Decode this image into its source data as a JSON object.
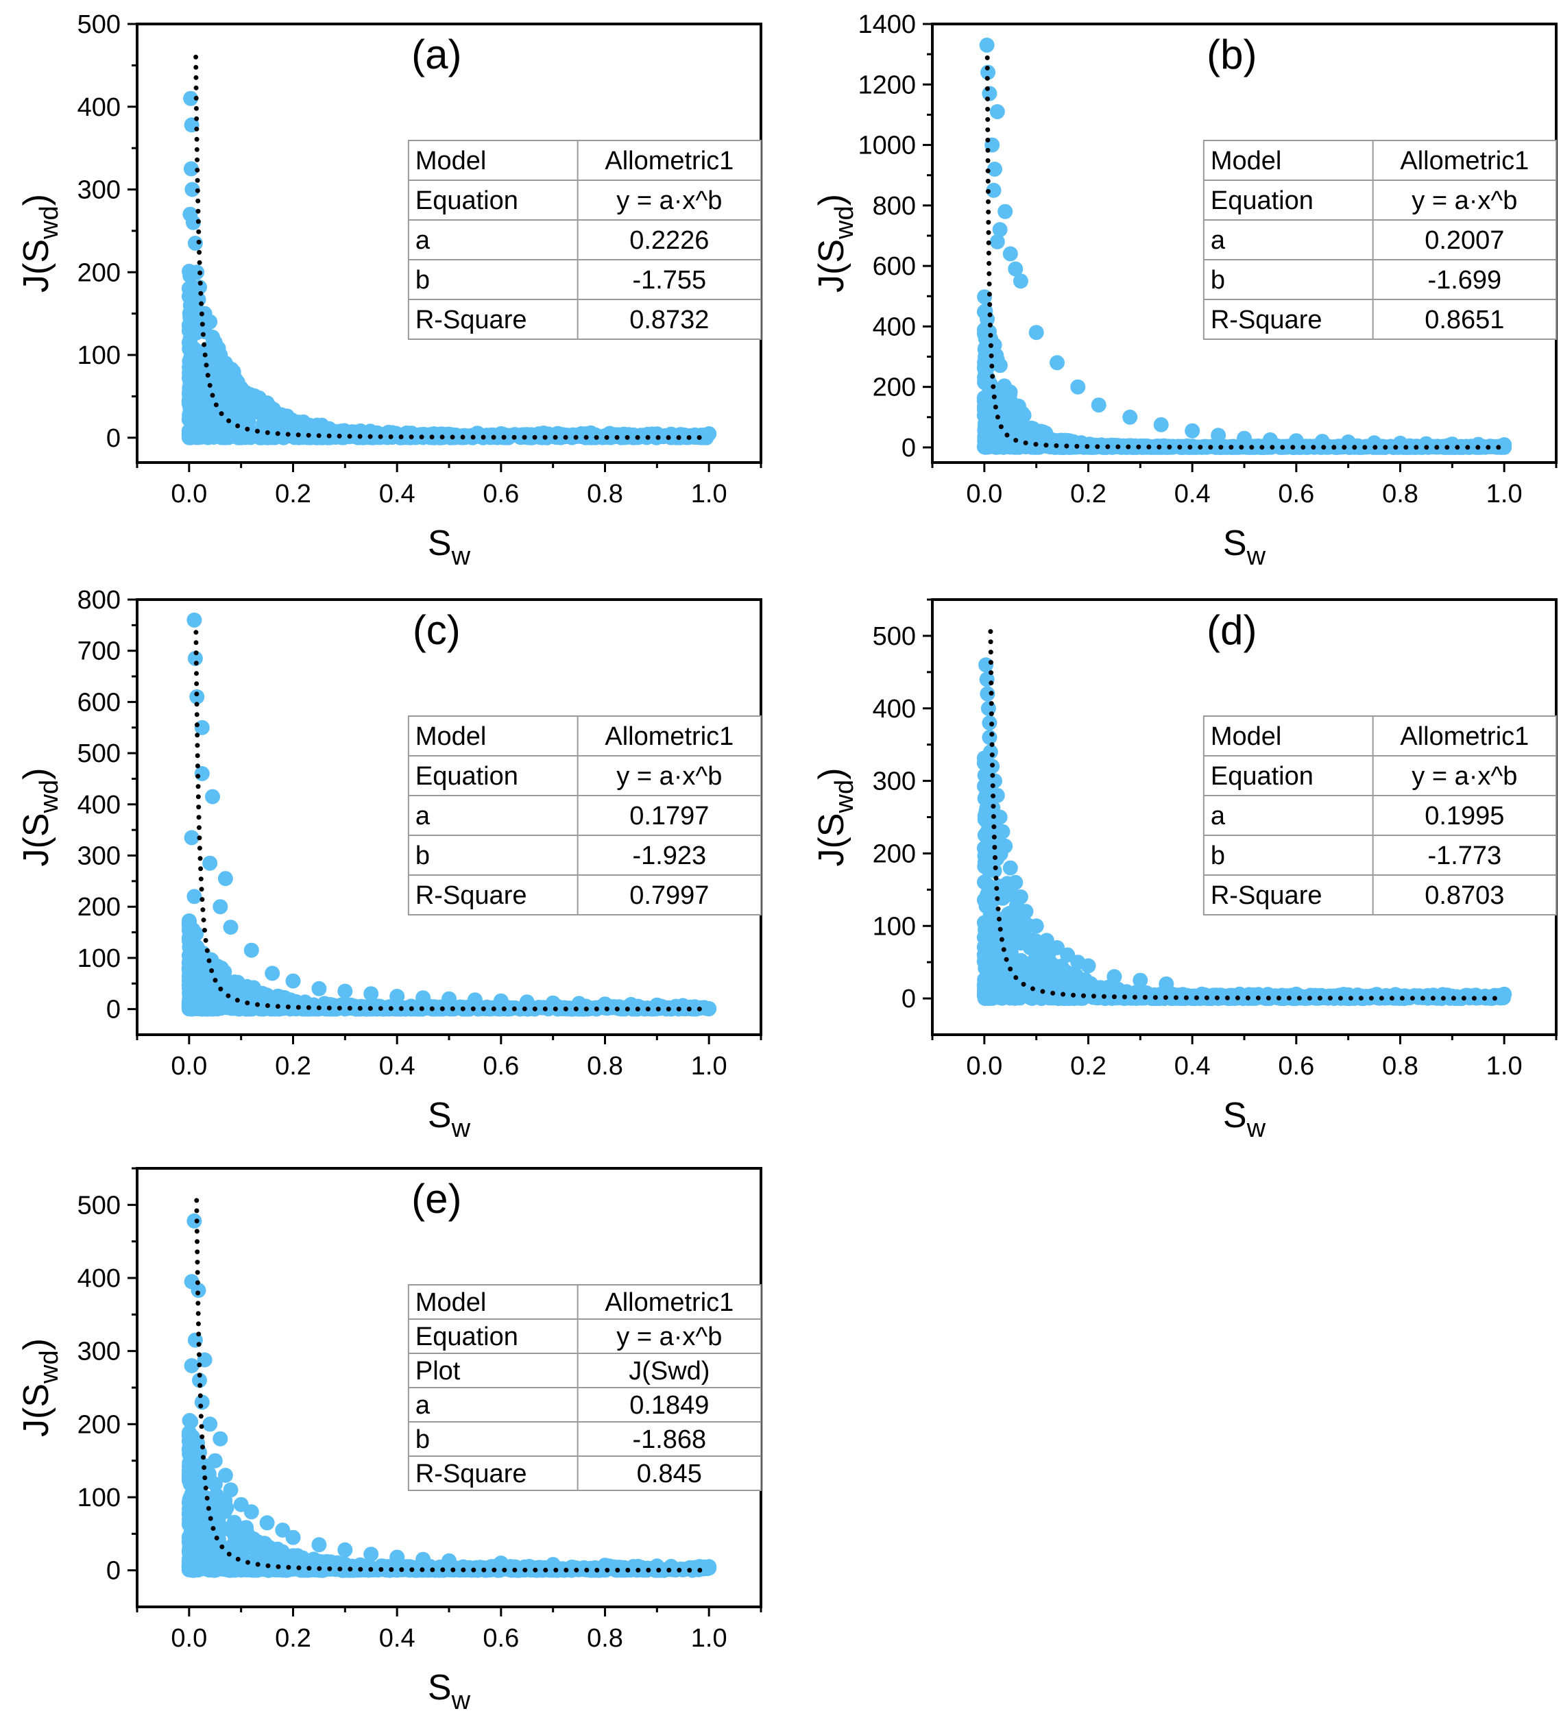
{
  "figure": {
    "fit_color": "#000000",
    "point_color": "#5BBEF5"
  },
  "chart_data": [
    {
      "type": "scatter",
      "panel": "(a)",
      "xlabel": "S",
      "xlabel_sub": "w",
      "ylabel": "J(S",
      "ylabel_sub": "wd",
      "ylabel_close": ")",
      "xlim": [
        -0.1,
        1.1
      ],
      "ylim": [
        -30,
        500
      ],
      "xticks": [
        0.0,
        0.2,
        0.4,
        0.6,
        0.8,
        1.0
      ],
      "xtick_labels": [
        "0.0",
        "0.2",
        "0.4",
        "0.6",
        "0.8",
        "1.0"
      ],
      "yticks": [
        0,
        100,
        200,
        300,
        400,
        500
      ],
      "ytick_labels": [
        "0",
        "100",
        "200",
        "300",
        "400",
        "500"
      ],
      "fit": {
        "model": "Allometric1",
        "a": 0.2226,
        "b": -1.755
      },
      "table": [
        [
          "Model",
          "Allometric1"
        ],
        [
          "Equation",
          "y = a·x^b"
        ],
        [
          "a",
          "0.2226"
        ],
        [
          "b",
          "-1.755"
        ],
        [
          "R-Square",
          "0.8732"
        ]
      ],
      "points": {
        "envelope_peak": 200,
        "envelope_decay": 11,
        "count": 700,
        "outliers": [
          [
            0.003,
            410
          ],
          [
            0.005,
            378
          ],
          [
            0.004,
            325
          ],
          [
            0.006,
            300
          ],
          [
            0.002,
            270
          ],
          [
            0.008,
            260
          ],
          [
            0.012,
            235
          ],
          [
            0.015,
            200
          ],
          [
            0.02,
            182
          ],
          [
            0.006,
            150
          ],
          [
            0.01,
            105
          ],
          [
            0.005,
            60
          ],
          [
            0.015,
            52
          ],
          [
            0.03,
            150
          ],
          [
            0.04,
            140
          ],
          [
            0.05,
            115
          ],
          [
            0.06,
            100
          ],
          [
            0.07,
            90
          ],
          [
            0.08,
            80
          ],
          [
            0.09,
            70
          ],
          [
            0.1,
            60
          ],
          [
            0.12,
            45
          ],
          [
            0.14,
            32
          ],
          [
            0.16,
            22
          ],
          [
            0.2,
            14
          ]
        ]
      }
    },
    {
      "type": "scatter",
      "panel": "(b)",
      "xlabel": "S",
      "xlabel_sub": "w",
      "ylabel": "J(S",
      "ylabel_sub": "wd",
      "ylabel_close": ")",
      "xlim": [
        -0.1,
        1.1
      ],
      "ylim": [
        -50,
        1400
      ],
      "xticks": [
        0.0,
        0.2,
        0.4,
        0.6,
        0.8,
        1.0
      ],
      "xtick_labels": [
        "0.0",
        "0.2",
        "0.4",
        "0.6",
        "0.8",
        "1.0"
      ],
      "yticks": [
        0,
        200,
        400,
        600,
        800,
        1000,
        1200,
        1400
      ],
      "ytick_labels": [
        "0",
        "200",
        "400",
        "600",
        "800",
        "1000",
        "1200",
        "1400"
      ],
      "fit": {
        "model": "Allometric1",
        "a": 0.2007,
        "b": -1.699
      },
      "table": [
        [
          "Model",
          "Allometric1"
        ],
        [
          "Equation",
          "y = a·x^b"
        ],
        [
          "a",
          "0.2007"
        ],
        [
          "b",
          "-1.699"
        ],
        [
          "R-Square",
          "0.8651"
        ]
      ],
      "points": {
        "envelope_peak": 500,
        "envelope_decay": 20,
        "count": 700,
        "outliers": [
          [
            0.005,
            1330
          ],
          [
            0.007,
            1240
          ],
          [
            0.01,
            1170
          ],
          [
            0.025,
            1110
          ],
          [
            0.015,
            1000
          ],
          [
            0.02,
            920
          ],
          [
            0.018,
            850
          ],
          [
            0.04,
            780
          ],
          [
            0.03,
            720
          ],
          [
            0.025,
            680
          ],
          [
            0.05,
            640
          ],
          [
            0.06,
            590
          ],
          [
            0.07,
            550
          ],
          [
            0.1,
            380
          ],
          [
            0.14,
            280
          ],
          [
            0.18,
            200
          ],
          [
            0.22,
            140
          ],
          [
            0.28,
            100
          ],
          [
            0.34,
            75
          ],
          [
            0.4,
            55
          ],
          [
            0.45,
            40
          ],
          [
            0.5,
            30
          ],
          [
            0.55,
            25
          ],
          [
            0.6,
            22
          ],
          [
            0.65,
            20
          ],
          [
            0.7,
            18
          ],
          [
            0.75,
            15
          ],
          [
            0.8,
            14
          ],
          [
            0.85,
            12
          ],
          [
            0.9,
            11
          ],
          [
            0.95,
            10
          ],
          [
            1.0,
            9
          ]
        ]
      }
    },
    {
      "type": "scatter",
      "panel": "(c)",
      "xlabel": "S",
      "xlabel_sub": "w",
      "ylabel": "J(S",
      "ylabel_sub": "wd",
      "ylabel_close": ")",
      "xlim": [
        -0.1,
        1.1
      ],
      "ylim": [
        -50,
        800
      ],
      "xticks": [
        0.0,
        0.2,
        0.4,
        0.6,
        0.8,
        1.0
      ],
      "xtick_labels": [
        "0.0",
        "0.2",
        "0.4",
        "0.6",
        "0.8",
        "1.0"
      ],
      "yticks": [
        0,
        100,
        200,
        300,
        400,
        500,
        600,
        700,
        800
      ],
      "ytick_labels": [
        "0",
        "100",
        "200",
        "300",
        "400",
        "500",
        "600",
        "700",
        "800"
      ],
      "fit": {
        "model": "Allometric1",
        "a": 0.1797,
        "b": -1.923
      },
      "table": [
        [
          "Model",
          "Allometric1"
        ],
        [
          "Equation",
          "y = a·x^b"
        ],
        [
          "a",
          "0.1797"
        ],
        [
          "b",
          "-1.923"
        ],
        [
          "R-Square",
          "0.7997"
        ]
      ],
      "points": {
        "envelope_peak": 170,
        "envelope_decay": 12,
        "count": 650,
        "outliers": [
          [
            0.01,
            760
          ],
          [
            0.012,
            685
          ],
          [
            0.015,
            610
          ],
          [
            0.025,
            550
          ],
          [
            0.025,
            460
          ],
          [
            0.045,
            415
          ],
          [
            0.005,
            335
          ],
          [
            0.04,
            285
          ],
          [
            0.07,
            255
          ],
          [
            0.01,
            220
          ],
          [
            0.06,
            200
          ],
          [
            0.08,
            160
          ],
          [
            0.12,
            115
          ],
          [
            0.16,
            70
          ],
          [
            0.2,
            55
          ],
          [
            0.25,
            40
          ],
          [
            0.3,
            35
          ],
          [
            0.35,
            30
          ],
          [
            0.4,
            25
          ],
          [
            0.45,
            22
          ],
          [
            0.5,
            20
          ],
          [
            0.55,
            18
          ],
          [
            0.6,
            16
          ],
          [
            0.65,
            14
          ],
          [
            0.7,
            12
          ],
          [
            0.75,
            11
          ],
          [
            0.8,
            10
          ],
          [
            0.85,
            9
          ],
          [
            0.9,
            8
          ],
          [
            0.95,
            7
          ]
        ]
      }
    },
    {
      "type": "scatter",
      "panel": "(d)",
      "xlabel": "S",
      "xlabel_sub": "w",
      "ylabel": "J(S",
      "ylabel_sub": "wd",
      "ylabel_close": ")",
      "xlim": [
        -0.1,
        1.1
      ],
      "ylim": [
        -50,
        550
      ],
      "xticks": [
        0.0,
        0.2,
        0.4,
        0.6,
        0.8,
        1.0
      ],
      "xtick_labels": [
        "0.0",
        "0.2",
        "0.4",
        "0.6",
        "0.8",
        "1.0"
      ],
      "yticks": [
        0,
        100,
        200,
        300,
        400,
        500
      ],
      "ytick_labels": [
        "0",
        "100",
        "200",
        "300",
        "400",
        "500"
      ],
      "fit": {
        "model": "Allometric1",
        "a": 0.1995,
        "b": -1.773
      },
      "table": [
        [
          "Model",
          "Allometric1"
        ],
        [
          "Equation",
          "y = a·x^b"
        ],
        [
          "a",
          "0.1995"
        ],
        [
          "b",
          "-1.773"
        ],
        [
          "R-Square",
          "0.8703"
        ]
      ],
      "points": {
        "envelope_peak": 330,
        "envelope_decay": 14,
        "count": 750,
        "outliers": [
          [
            0.003,
            460
          ],
          [
            0.005,
            440
          ],
          [
            0.006,
            420
          ],
          [
            0.008,
            400
          ],
          [
            0.01,
            380
          ],
          [
            0.01,
            360
          ],
          [
            0.012,
            340
          ],
          [
            0.015,
            320
          ],
          [
            0.02,
            300
          ],
          [
            0.025,
            280
          ],
          [
            0.03,
            250
          ],
          [
            0.035,
            230
          ],
          [
            0.04,
            210
          ],
          [
            0.05,
            180
          ],
          [
            0.06,
            160
          ],
          [
            0.07,
            140
          ],
          [
            0.08,
            120
          ],
          [
            0.1,
            100
          ],
          [
            0.12,
            80
          ],
          [
            0.14,
            70
          ],
          [
            0.16,
            60
          ],
          [
            0.18,
            50
          ],
          [
            0.2,
            45
          ],
          [
            0.25,
            30
          ],
          [
            0.3,
            25
          ],
          [
            0.35,
            20
          ]
        ]
      }
    },
    {
      "type": "scatter",
      "panel": "(e)",
      "xlabel": "S",
      "xlabel_sub": "w",
      "ylabel": "J(S",
      "ylabel_sub": "wd",
      "ylabel_close": ")",
      "xlim": [
        -0.1,
        1.1
      ],
      "ylim": [
        -50,
        550
      ],
      "xticks": [
        0.0,
        0.2,
        0.4,
        0.6,
        0.8,
        1.0
      ],
      "xtick_labels": [
        "0.0",
        "0.2",
        "0.4",
        "0.6",
        "0.8",
        "1.0"
      ],
      "yticks": [
        0,
        100,
        200,
        300,
        400,
        500
      ],
      "ytick_labels": [
        "0",
        "100",
        "200",
        "300",
        "400",
        "500"
      ],
      "fit": {
        "model": "Allometric1",
        "a": 0.1849,
        "b": -1.868
      },
      "table": [
        [
          "Model",
          "Allometric1"
        ],
        [
          "Equation",
          "y = a·x^b"
        ],
        [
          "Plot",
          "J(Swd)"
        ],
        [
          "a",
          "0.1849"
        ],
        [
          "b",
          "-1.868"
        ],
        [
          "R-Square",
          "0.845"
        ]
      ],
      "points": {
        "envelope_peak": 210,
        "envelope_decay": 12,
        "count": 650,
        "outliers": [
          [
            0.01,
            478
          ],
          [
            0.005,
            395
          ],
          [
            0.018,
            383
          ],
          [
            0.012,
            315
          ],
          [
            0.03,
            288
          ],
          [
            0.005,
            280
          ],
          [
            0.02,
            260
          ],
          [
            0.025,
            230
          ],
          [
            0.04,
            200
          ],
          [
            0.06,
            180
          ],
          [
            0.05,
            150
          ],
          [
            0.07,
            130
          ],
          [
            0.08,
            110
          ],
          [
            0.1,
            90
          ],
          [
            0.12,
            80
          ],
          [
            0.15,
            65
          ],
          [
            0.18,
            55
          ],
          [
            0.2,
            45
          ],
          [
            0.25,
            35
          ],
          [
            0.3,
            28
          ],
          [
            0.35,
            22
          ],
          [
            0.4,
            18
          ],
          [
            0.45,
            15
          ],
          [
            0.5,
            13
          ],
          [
            0.6,
            10
          ],
          [
            0.7,
            8
          ],
          [
            0.8,
            7
          ],
          [
            0.9,
            6
          ],
          [
            1.0,
            5
          ]
        ]
      }
    }
  ]
}
